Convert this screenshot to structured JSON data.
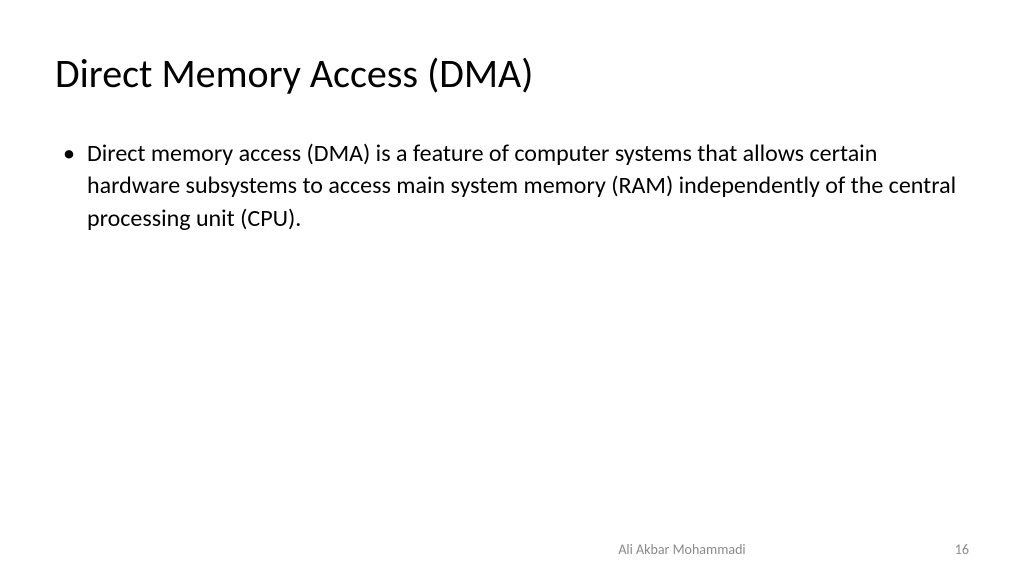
{
  "slide": {
    "title": "Direct Memory Access (DMA)",
    "title_fontsize": 40,
    "title_color": "#000000",
    "bullets": [
      {
        "text": "Direct memory access (DMA) is a feature of computer systems that allows certain hardware subsystems to access main system memory (RAM) independently of the central processing unit (CPU)."
      }
    ],
    "body_fontsize": 24,
    "body_color": "#000000",
    "background_color": "#ffffff"
  },
  "footer": {
    "author": "Ali Akbar Mohammadi",
    "page_number": "16",
    "footer_color": "#8a8a8a",
    "footer_fontsize": 14
  }
}
